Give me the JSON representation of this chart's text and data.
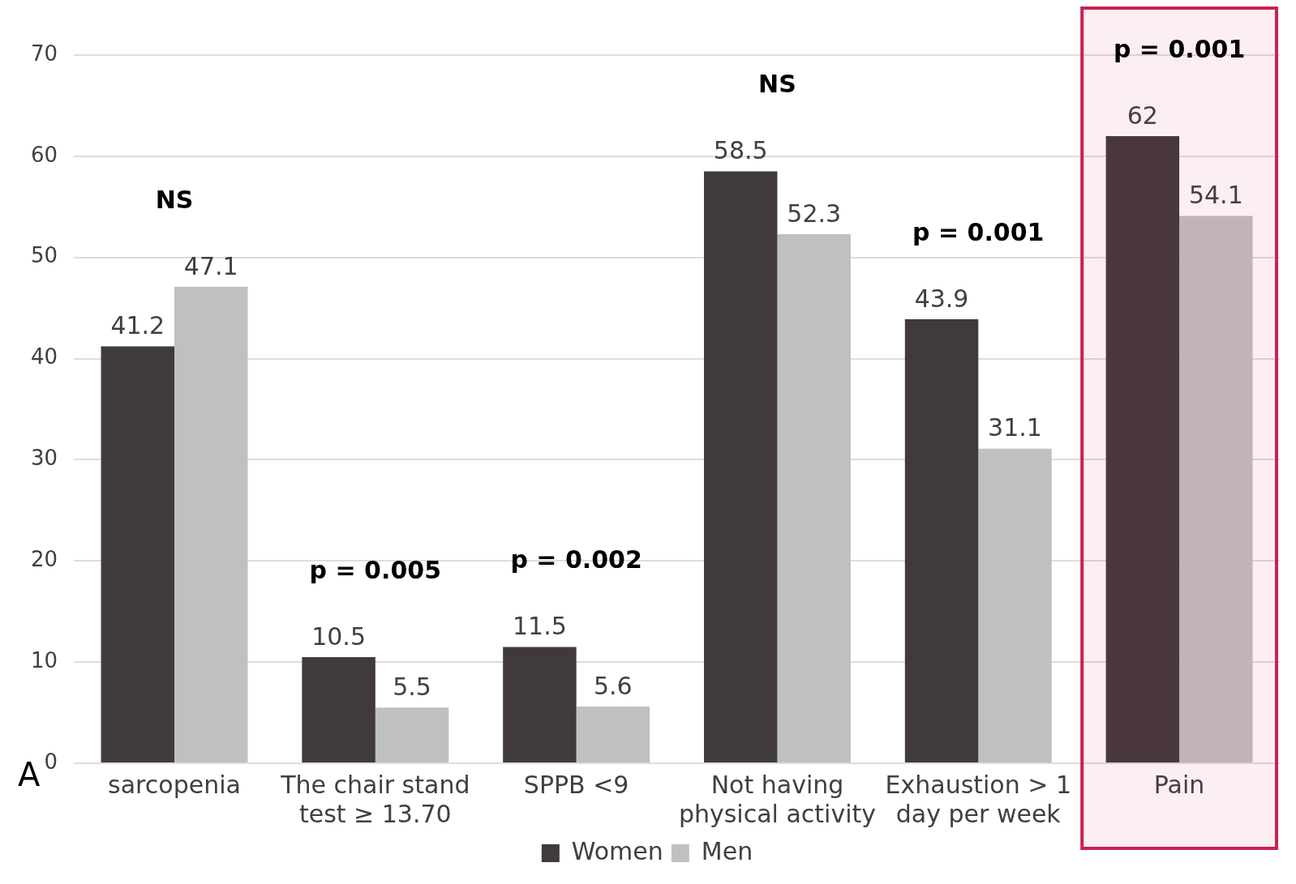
{
  "chart_data": {
    "type": "bar",
    "categories": [
      "sarcopenia",
      "The chair stand test ≥ 13.70",
      "SPPB <9",
      "Not having physical activity",
      "Exhaustion > 1 day per week",
      "Pain"
    ],
    "series": [
      {
        "name": "Women",
        "color": "#403a3b",
        "values": [
          41.2,
          10.5,
          11.5,
          58.5,
          43.9,
          62
        ]
      },
      {
        "name": "Men",
        "color": "#c0c0c0",
        "values": [
          47.1,
          5.5,
          5.6,
          52.3,
          31.1,
          54.1
        ]
      }
    ],
    "bands": [
      {
        "axis": "x",
        "from": "Pain",
        "to": "Pain",
        "color": "#c8234f"
      }
    ],
    "ylim": [
      0,
      70
    ],
    "yticks": [
      0,
      10,
      20,
      30,
      40,
      50,
      60,
      70
    ],
    "grid": "y",
    "legend": "bottom",
    "data_labels": true,
    "annotations": [
      "NS",
      "p = 0.005",
      "p = 0.002",
      "NS",
      "p = 0.001",
      "p = 0.001",
      "A"
    ]
  }
}
